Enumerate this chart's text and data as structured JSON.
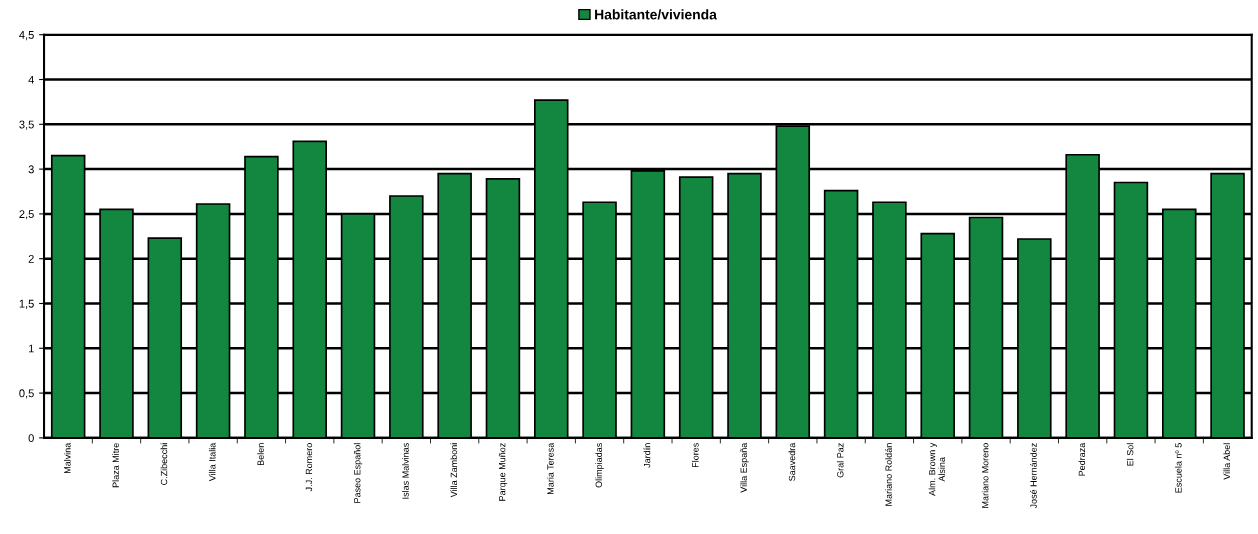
{
  "chart_data": {
    "type": "bar",
    "categories": [
      "Malvina",
      "Plaza Mitre",
      "C.Zibecchi",
      "Villa Italia",
      "Belen",
      "J.J. Romero",
      "Paseo Español",
      "Islas Malvinas",
      "Villa Zamboni",
      "Parque Muñoz",
      "Maria Teresa",
      "Olimpiadas",
      "Jardín",
      "Flores",
      "Villa España",
      "Saavedra",
      "Gral Paz",
      "Mariano Roldán",
      "Alm. Brown y\nAlsina",
      "Mariano Moreno",
      "José Hernández",
      "Pedraza",
      "El Sol",
      "Escuela nº 5",
      "Villa Abel"
    ],
    "series": [
      {
        "name": "Habitante/vivienda",
        "color": "#13873f",
        "values": [
          3.15,
          2.55,
          2.23,
          2.61,
          3.14,
          3.31,
          2.5,
          2.7,
          2.95,
          2.89,
          3.77,
          2.63,
          2.98,
          2.91,
          2.95,
          3.48,
          2.76,
          2.63,
          2.28,
          2.46,
          2.22,
          3.16,
          2.85,
          2.55,
          2.95
        ]
      }
    ],
    "ylim": [
      0,
      4.5
    ],
    "yticks": [
      0,
      {
        "value": 0.5,
        "label": "0,5"
      },
      1,
      {
        "value": 1.5,
        "label": "1,5"
      },
      2,
      {
        "value": 2.5,
        "label": "2,5"
      },
      3,
      {
        "value": 3.5,
        "label": "3,5"
      },
      4,
      {
        "value": 4.5,
        "label": "4,5"
      }
    ],
    "grid": "y",
    "legend": "top"
  }
}
